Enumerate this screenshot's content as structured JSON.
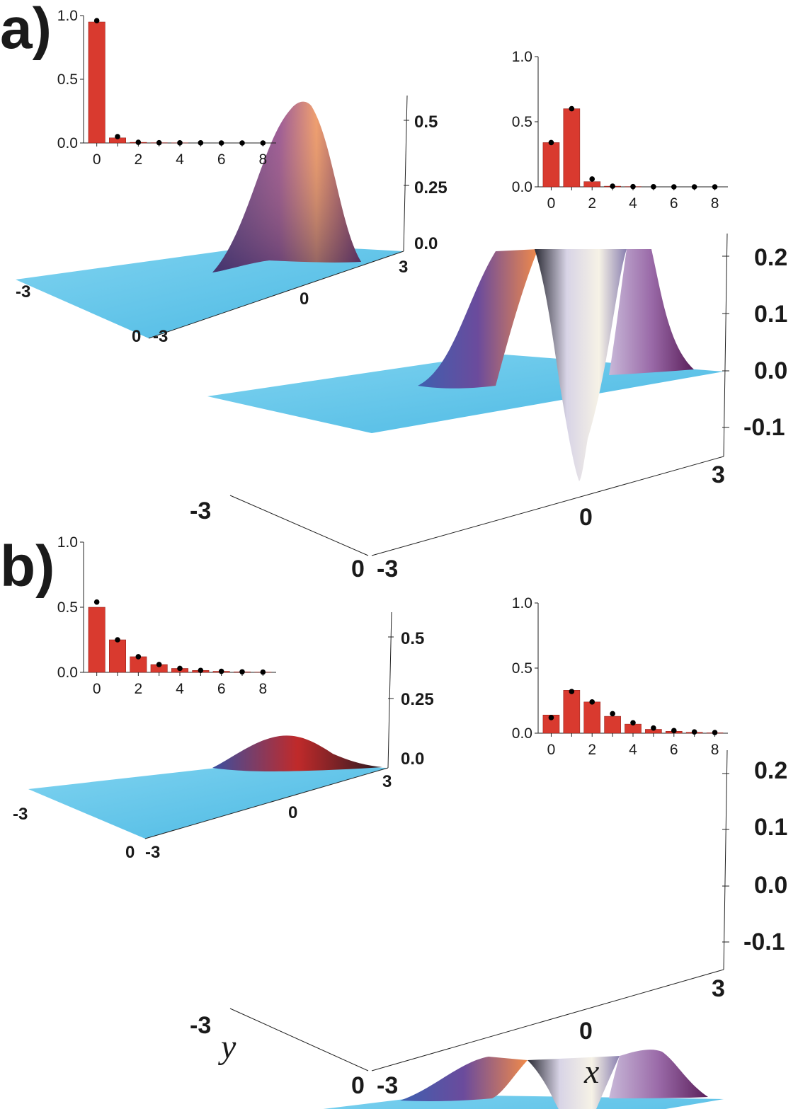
{
  "figure": {
    "axis_names": {
      "y": "y",
      "x": "x"
    },
    "colors": {
      "bar": "#d93a2f",
      "surface_flat": "#5cc3e8",
      "surface_high": "#e8823a",
      "surface_side": "#4b3f8f",
      "surface_dip": "#f2f0ea",
      "axis": "#222222"
    }
  },
  "chart_data": [
    {
      "panel": "a)",
      "kind": "wigner-surface",
      "size": "small",
      "z_ticks": [
        "0.0",
        "0.25",
        "0.5"
      ],
      "x_ticks": [
        "-3",
        "0",
        "3"
      ],
      "y_ticks": [
        "-3",
        "0"
      ]
    },
    {
      "panel": "a)",
      "kind": "bar-inset",
      "type": "bar",
      "categories": [
        0,
        1,
        2,
        3,
        4,
        5,
        6,
        7,
        8
      ],
      "x_tick_labels": [
        "0",
        "2",
        "4",
        "6",
        "8"
      ],
      "y_tick_labels": [
        "0.0",
        "0.5",
        "1.0"
      ],
      "ylim": [
        0,
        1
      ],
      "series": [
        {
          "values": [
            0.95,
            0.04,
            0.005,
            0.002,
            0.001,
            0,
            0,
            0,
            0
          ]
        },
        {
          "values": [
            0.96,
            0.05,
            0.005,
            0.002,
            0.001,
            0.001,
            0,
            0,
            0
          ],
          "style": "points"
        }
      ]
    },
    {
      "panel": "a)",
      "kind": "wigner-surface",
      "size": "large",
      "z_ticks": [
        "-0.1",
        "0.0",
        "0.1",
        "0.2"
      ],
      "x_ticks": [
        "-3",
        "0",
        "3"
      ],
      "y_ticks": [
        "-3",
        "0"
      ]
    },
    {
      "panel": "a)",
      "kind": "bar-inset",
      "type": "bar",
      "categories": [
        0,
        1,
        2,
        3,
        4,
        5,
        6,
        7,
        8
      ],
      "x_tick_labels": [
        "0",
        "2",
        "4",
        "6",
        "8"
      ],
      "y_tick_labels": [
        "0.0",
        "0.5",
        "1.0"
      ],
      "ylim": [
        0,
        1
      ],
      "series": [
        {
          "values": [
            0.34,
            0.6,
            0.04,
            0.005,
            0.002,
            0,
            0,
            0,
            0
          ]
        },
        {
          "values": [
            0.34,
            0.6,
            0.06,
            0.005,
            0.002,
            0.001,
            0,
            0,
            0
          ],
          "style": "points"
        }
      ]
    },
    {
      "panel": "b)",
      "kind": "wigner-surface",
      "size": "small",
      "z_ticks": [
        "0.0",
        "0.25",
        "0.5"
      ],
      "x_ticks": [
        "-3",
        "0",
        "3"
      ],
      "y_ticks": [
        "-3",
        "0"
      ]
    },
    {
      "panel": "b)",
      "kind": "bar-inset",
      "type": "bar",
      "categories": [
        0,
        1,
        2,
        3,
        4,
        5,
        6,
        7,
        8
      ],
      "x_tick_labels": [
        "0",
        "2",
        "4",
        "6",
        "8"
      ],
      "y_tick_labels": [
        "0.0",
        "0.5",
        "1.0"
      ],
      "ylim": [
        0,
        1
      ],
      "series": [
        {
          "values": [
            0.5,
            0.25,
            0.12,
            0.06,
            0.03,
            0.015,
            0.008,
            0.004,
            0.002
          ]
        },
        {
          "values": [
            0.54,
            0.25,
            0.12,
            0.06,
            0.03,
            0.015,
            0.008,
            0.004,
            0.002
          ],
          "style": "points"
        }
      ]
    },
    {
      "panel": "b)",
      "kind": "wigner-surface",
      "size": "large",
      "z_ticks": [
        "-0.1",
        "0.0",
        "0.1",
        "0.2"
      ],
      "x_ticks": [
        "-3",
        "0",
        "3"
      ],
      "y_ticks": [
        "-3",
        "0"
      ]
    },
    {
      "panel": "b)",
      "kind": "bar-inset",
      "type": "bar",
      "categories": [
        0,
        1,
        2,
        3,
        4,
        5,
        6,
        7,
        8
      ],
      "x_tick_labels": [
        "0",
        "2",
        "4",
        "6",
        "8"
      ],
      "y_tick_labels": [
        "0.0",
        "0.5",
        "1.0"
      ],
      "ylim": [
        0,
        1
      ],
      "series": [
        {
          "values": [
            0.14,
            0.33,
            0.24,
            0.13,
            0.07,
            0.03,
            0.015,
            0.007,
            0.003
          ]
        },
        {
          "values": [
            0.12,
            0.32,
            0.24,
            0.15,
            0.08,
            0.04,
            0.02,
            0.01,
            0.005
          ],
          "style": "points"
        }
      ]
    }
  ]
}
